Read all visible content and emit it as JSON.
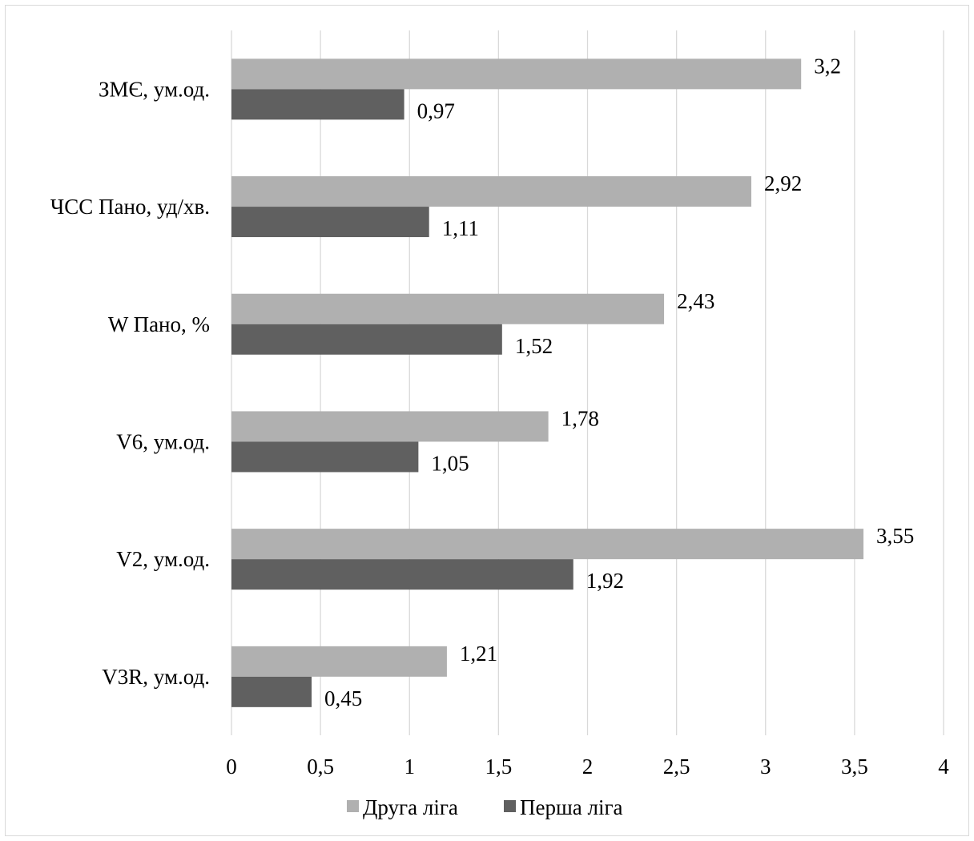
{
  "chart_data": {
    "type": "bar",
    "orientation": "horizontal",
    "categories": [
      "ЗМЄ, ум.од.",
      "ЧСС Пано, уд/хв.",
      "W Пано, %",
      "V6,  ум.од.",
      "V2, ум.од.",
      "V3R, ум.од."
    ],
    "series": [
      {
        "name": "Друга ліга",
        "color": "#b0b0b0",
        "values": [
          3.2,
          2.92,
          2.43,
          1.78,
          3.55,
          1.21
        ],
        "labels": [
          "3,2",
          "2,92",
          "2,43",
          "1,78",
          "3,55",
          "1,21"
        ]
      },
      {
        "name": "Перша ліга",
        "color": "#606060",
        "values": [
          0.97,
          1.11,
          1.52,
          1.05,
          1.92,
          0.45
        ],
        "labels": [
          "0,97",
          "1,11",
          "1,52",
          "1,05",
          "1,92",
          "0,45"
        ]
      }
    ],
    "xlim": [
      0,
      4
    ],
    "x_ticks": [
      0,
      0.5,
      1,
      1.5,
      2,
      2.5,
      3,
      3.5,
      4
    ],
    "x_tick_labels": [
      "0",
      "0,5",
      "1",
      "1,5",
      "2",
      "2,5",
      "3",
      "3,5",
      "4"
    ],
    "grid": "vertical",
    "legend": "bottom"
  }
}
